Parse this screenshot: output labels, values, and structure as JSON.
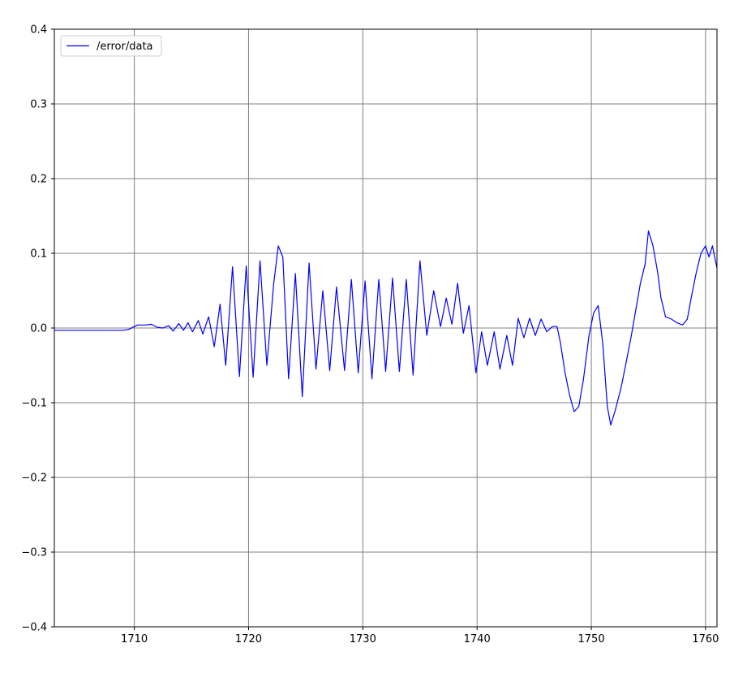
{
  "chart_data": {
    "type": "line",
    "title": "",
    "xlabel": "",
    "ylabel": "",
    "xlim": [
      1703,
      1761
    ],
    "ylim": [
      -0.4,
      0.4
    ],
    "x_ticks": [
      1710,
      1720,
      1730,
      1740,
      1750,
      1760
    ],
    "x_tick_labels": [
      "1710",
      "1720",
      "1730",
      "1740",
      "1750",
      "1760"
    ],
    "y_ticks": [
      -0.4,
      -0.3,
      -0.2,
      -0.1,
      0.0,
      0.1,
      0.2,
      0.3,
      0.4
    ],
    "y_tick_labels": [
      "−0.4",
      "−0.3",
      "−0.2",
      "−0.1",
      "0.0",
      "0.1",
      "0.2",
      "0.3",
      "0.4"
    ],
    "grid": true,
    "legend_position": "top-left",
    "series": [
      {
        "name": "/error/data",
        "color": "#0000ff",
        "points": [
          [
            1703.0,
            -0.003
          ],
          [
            1709.0,
            -0.003
          ],
          [
            1709.5,
            -0.002
          ],
          [
            1710.0,
            0.002
          ],
          [
            1710.3,
            0.004
          ],
          [
            1711.0,
            0.004
          ],
          [
            1711.5,
            0.005
          ],
          [
            1712.0,
            0.001
          ],
          [
            1712.5,
            0.0
          ],
          [
            1713.0,
            0.003
          ],
          [
            1713.4,
            -0.004
          ],
          [
            1713.9,
            0.006
          ],
          [
            1714.3,
            -0.003
          ],
          [
            1714.7,
            0.007
          ],
          [
            1715.1,
            -0.005
          ],
          [
            1715.6,
            0.01
          ],
          [
            1716.0,
            -0.008
          ],
          [
            1716.5,
            0.015
          ],
          [
            1717.0,
            -0.025
          ],
          [
            1717.5,
            0.032
          ],
          [
            1718.0,
            -0.05
          ],
          [
            1718.6,
            0.082
          ],
          [
            1719.2,
            -0.065
          ],
          [
            1719.8,
            0.083
          ],
          [
            1720.4,
            -0.066
          ],
          [
            1721.0,
            0.09
          ],
          [
            1721.6,
            -0.05
          ],
          [
            1722.2,
            0.06
          ],
          [
            1722.6,
            0.11
          ],
          [
            1723.0,
            0.095
          ],
          [
            1723.5,
            -0.068
          ],
          [
            1724.1,
            0.073
          ],
          [
            1724.7,
            -0.092
          ],
          [
            1725.3,
            0.087
          ],
          [
            1725.9,
            -0.055
          ],
          [
            1726.5,
            0.05
          ],
          [
            1727.1,
            -0.057
          ],
          [
            1727.7,
            0.055
          ],
          [
            1728.4,
            -0.057
          ],
          [
            1729.0,
            0.065
          ],
          [
            1729.6,
            -0.06
          ],
          [
            1730.2,
            0.063
          ],
          [
            1730.8,
            -0.068
          ],
          [
            1731.4,
            0.065
          ],
          [
            1732.0,
            -0.058
          ],
          [
            1732.6,
            0.067
          ],
          [
            1733.2,
            -0.058
          ],
          [
            1733.8,
            0.065
          ],
          [
            1734.4,
            -0.063
          ],
          [
            1735.0,
            0.09
          ],
          [
            1735.6,
            -0.01
          ],
          [
            1736.2,
            0.05
          ],
          [
            1736.8,
            0.002
          ],
          [
            1737.3,
            0.04
          ],
          [
            1737.8,
            0.005
          ],
          [
            1738.3,
            0.06
          ],
          [
            1738.8,
            -0.007
          ],
          [
            1739.3,
            0.03
          ],
          [
            1739.9,
            -0.06
          ],
          [
            1740.4,
            -0.005
          ],
          [
            1740.9,
            -0.05
          ],
          [
            1741.5,
            -0.005
          ],
          [
            1742.0,
            -0.055
          ],
          [
            1742.6,
            -0.01
          ],
          [
            1743.1,
            -0.05
          ],
          [
            1743.6,
            0.013
          ],
          [
            1744.1,
            -0.013
          ],
          [
            1744.6,
            0.013
          ],
          [
            1745.1,
            -0.01
          ],
          [
            1745.6,
            0.012
          ],
          [
            1746.1,
            -0.005
          ],
          [
            1746.6,
            0.002
          ],
          [
            1747.0,
            0.002
          ],
          [
            1747.3,
            -0.02
          ],
          [
            1747.7,
            -0.06
          ],
          [
            1748.1,
            -0.09
          ],
          [
            1748.5,
            -0.112
          ],
          [
            1748.9,
            -0.105
          ],
          [
            1749.3,
            -0.07
          ],
          [
            1749.8,
            -0.01
          ],
          [
            1750.2,
            0.02
          ],
          [
            1750.6,
            0.03
          ],
          [
            1751.0,
            -0.02
          ],
          [
            1751.4,
            -0.105
          ],
          [
            1751.7,
            -0.13
          ],
          [
            1752.1,
            -0.11
          ],
          [
            1752.6,
            -0.08
          ],
          [
            1753.0,
            -0.05
          ],
          [
            1753.5,
            -0.01
          ],
          [
            1753.9,
            0.025
          ],
          [
            1754.3,
            0.06
          ],
          [
            1754.7,
            0.085
          ],
          [
            1755.0,
            0.13
          ],
          [
            1755.4,
            0.11
          ],
          [
            1755.8,
            0.075
          ],
          [
            1756.1,
            0.04
          ],
          [
            1756.5,
            0.015
          ],
          [
            1757.0,
            0.012
          ],
          [
            1757.5,
            0.007
          ],
          [
            1758.0,
            0.004
          ],
          [
            1758.4,
            0.012
          ],
          [
            1758.8,
            0.045
          ],
          [
            1759.2,
            0.075
          ],
          [
            1759.6,
            0.1
          ],
          [
            1760.0,
            0.11
          ],
          [
            1760.3,
            0.095
          ],
          [
            1760.6,
            0.11
          ],
          [
            1761.0,
            0.08
          ]
        ]
      }
    ]
  }
}
